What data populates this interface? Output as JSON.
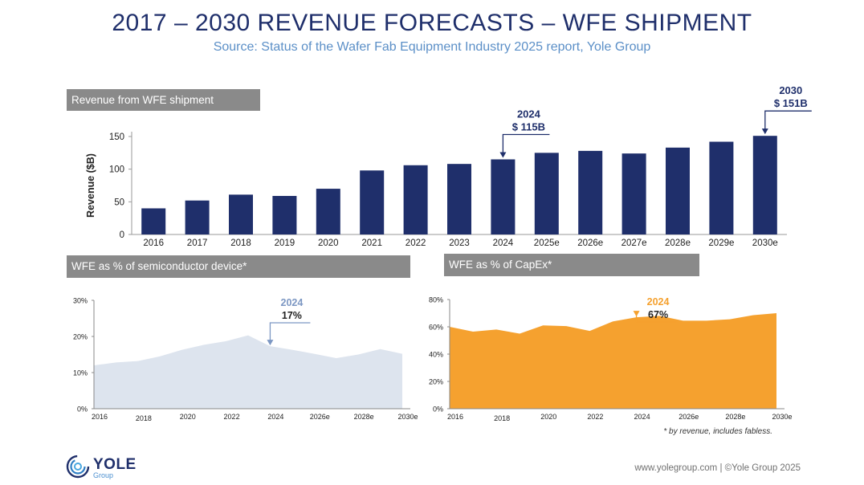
{
  "header": {
    "title": "2017 – 2030 REVENUE FORECASTS – WFE SHIPMENT",
    "subtitle": "Source: Status of the Wafer Fab Equipment Industry 2025  report, Yole Group"
  },
  "chart_data": [
    {
      "type": "bar",
      "title": "Revenue from WFE shipment",
      "ylabel": "Revenue ($B)",
      "ylim": [
        0,
        150
      ],
      "yticks": [
        "0",
        "50",
        "100",
        "150"
      ],
      "categories": [
        "2016",
        "2017",
        "2018",
        "2019",
        "2020",
        "2021",
        "2022",
        "2023",
        "2024",
        "2025e",
        "2026e",
        "2027e",
        "2028e",
        "2029e",
        "2030e"
      ],
      "values": [
        40,
        52,
        61,
        59,
        70,
        98,
        106,
        108,
        115,
        125,
        128,
        124,
        133,
        142,
        151
      ],
      "color": "#1f2f6b",
      "annotations": [
        {
          "category": "2024",
          "year": "2024",
          "text": "$ 115B"
        },
        {
          "category": "2030e",
          "year": "2030",
          "text": "$ 151B"
        }
      ]
    },
    {
      "type": "area",
      "title": "WFE as % of semiconductor device*",
      "ylim": [
        0,
        30
      ],
      "yticks": [
        "0%",
        "10%",
        "20%",
        "30%"
      ],
      "xlabels": [
        "2016",
        "2018",
        "2020",
        "2022",
        "2024",
        "2026e",
        "2028e",
        "2030e"
      ],
      "x_start": 2016,
      "x_end": 2030,
      "x": [
        2016,
        2017,
        2018,
        2019,
        2020,
        2021,
        2022,
        2023,
        2024,
        2025,
        2026,
        2027,
        2028,
        2029,
        2030
      ],
      "values": [
        12,
        12.8,
        13.2,
        14.5,
        16.3,
        17.7,
        18.7,
        20.3,
        17.3,
        16.3,
        15.2,
        14.0,
        15.0,
        16.5,
        15.2
      ],
      "color": "#dde4ee",
      "annotation": {
        "x": 2024,
        "year": "2024",
        "text": "17%",
        "color": "#7c97c3"
      }
    },
    {
      "type": "area",
      "title": "WFE as % of CapEx*",
      "ylim": [
        0,
        80
      ],
      "yticks": [
        "0%",
        "20%",
        "40%",
        "60%",
        "80%"
      ],
      "xlabels": [
        "2016",
        "2018",
        "2020",
        "2022",
        "2024",
        "2026e",
        "2028e",
        "2030e"
      ],
      "x_start": 2016,
      "x_end": 2030,
      "x": [
        2016,
        2017,
        2018,
        2019,
        2020,
        2021,
        2022,
        2023,
        2024,
        2025,
        2026,
        2027,
        2028,
        2029,
        2030
      ],
      "values": [
        60,
        56.5,
        58,
        55,
        61,
        60.5,
        57,
        64,
        67,
        68,
        64.5,
        64.5,
        65.5,
        68.5,
        70
      ],
      "color": "#f5a12f",
      "annotation": {
        "x": 2024,
        "year": "2024",
        "text": "67%",
        "color": "#f5a12f"
      }
    }
  ],
  "footnote": "* by revenue, includes fabless.",
  "footer": {
    "logo_name": "YOLE",
    "logo_sub": "Group",
    "text": "www.yolegroup.com | ©Yole Group 2025"
  }
}
